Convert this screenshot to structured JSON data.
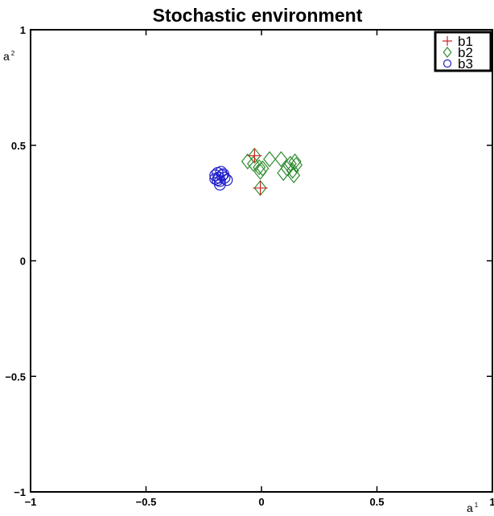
{
  "chart_data": {
    "type": "scatter",
    "title": "Stochastic environment",
    "xlabel": "a",
    "xlabel_superscript": "1",
    "ylabel": "a",
    "ylabel_superscript": "2",
    "xlim": [
      -1,
      1
    ],
    "ylim": [
      -1,
      1
    ],
    "xticks": [
      -1,
      -0.5,
      0,
      0.5,
      1
    ],
    "xtick_labels": [
      "−1",
      "−0.5",
      "0",
      "0.5",
      "1"
    ],
    "yticks": [
      -1,
      -0.5,
      0,
      0.5,
      1
    ],
    "ytick_labels": [
      "−1",
      "−0.5",
      "0",
      "0.5",
      "1"
    ],
    "grid": false,
    "legend_position": "top-right",
    "series": [
      {
        "name": "b1",
        "marker": "plus",
        "color": "#cc2222",
        "points": [
          [
            -0.03,
            0.455
          ],
          [
            -0.005,
            0.315
          ]
        ]
      },
      {
        "name": "b2",
        "marker": "diamond",
        "color": "#2e8b2e",
        "points": [
          [
            -0.06,
            0.43
          ],
          [
            -0.035,
            0.42
          ],
          [
            -0.03,
            0.455
          ],
          [
            -0.01,
            0.405
          ],
          [
            -0.005,
            0.385
          ],
          [
            0.005,
            0.4
          ],
          [
            -0.005,
            0.315
          ],
          [
            0.035,
            0.44
          ],
          [
            0.085,
            0.44
          ],
          [
            0.095,
            0.38
          ],
          [
            0.11,
            0.4
          ],
          [
            0.125,
            0.42
          ],
          [
            0.135,
            0.39
          ],
          [
            0.14,
            0.37
          ],
          [
            0.145,
            0.43
          ],
          [
            0.15,
            0.415
          ]
        ]
      },
      {
        "name": "b3",
        "marker": "circle",
        "color": "#2020cc",
        "points": [
          [
            -0.2,
            0.37
          ],
          [
            -0.19,
            0.38
          ],
          [
            -0.185,
            0.36
          ],
          [
            -0.18,
            0.345
          ],
          [
            -0.175,
            0.385
          ],
          [
            -0.17,
            0.37
          ],
          [
            -0.19,
            0.35
          ],
          [
            -0.15,
            0.35
          ],
          [
            -0.2,
            0.355
          ],
          [
            -0.16,
            0.36
          ],
          [
            -0.18,
            0.33
          ],
          [
            -0.165,
            0.375
          ]
        ]
      }
    ]
  }
}
